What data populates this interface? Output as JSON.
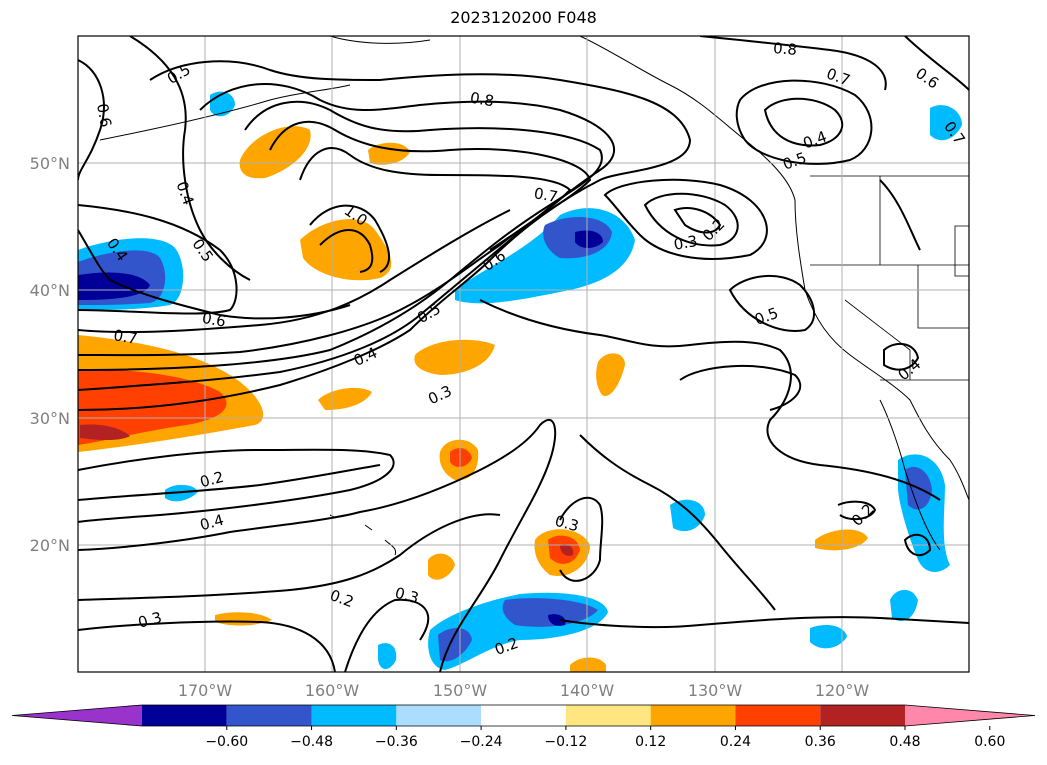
{
  "title": "2023120200 F048",
  "map": {
    "lat_labels": [
      "50°N",
      "40°N",
      "30°N",
      "20°N"
    ],
    "lon_labels": [
      "170°W",
      "160°W",
      "150°W",
      "140°W",
      "130°W",
      "120°W"
    ],
    "contour_labels": [
      "0.5",
      "0.6",
      "0.4",
      "0.4",
      "0.5",
      "0.6",
      "0.7",
      "1.0",
      "0.8",
      "0.7",
      "0.6",
      "0.5",
      "0.4",
      "0.3",
      "0.8",
      "0.7",
      "0.6",
      "0.7",
      "0.4",
      "0.5",
      "0.3",
      "0.2",
      "0.5",
      "0.4",
      "0.2",
      "0.4",
      "0.3",
      "0.3",
      "0.2",
      "0.3",
      "0.2",
      "0.2"
    ]
  },
  "colorbar": {
    "ticks": [
      "−0.60",
      "−0.48",
      "−0.36",
      "−0.24",
      "−0.12",
      "0.12",
      "0.24",
      "0.36",
      "0.48",
      "0.60"
    ],
    "colors": [
      "#9933cc",
      "#000099",
      "#3355cc",
      "#00bbff",
      "#aaddff",
      "#ffffff",
      "#ffe680",
      "#ffa500",
      "#ff4000",
      "#b22222",
      "#ff88aa"
    ]
  }
}
